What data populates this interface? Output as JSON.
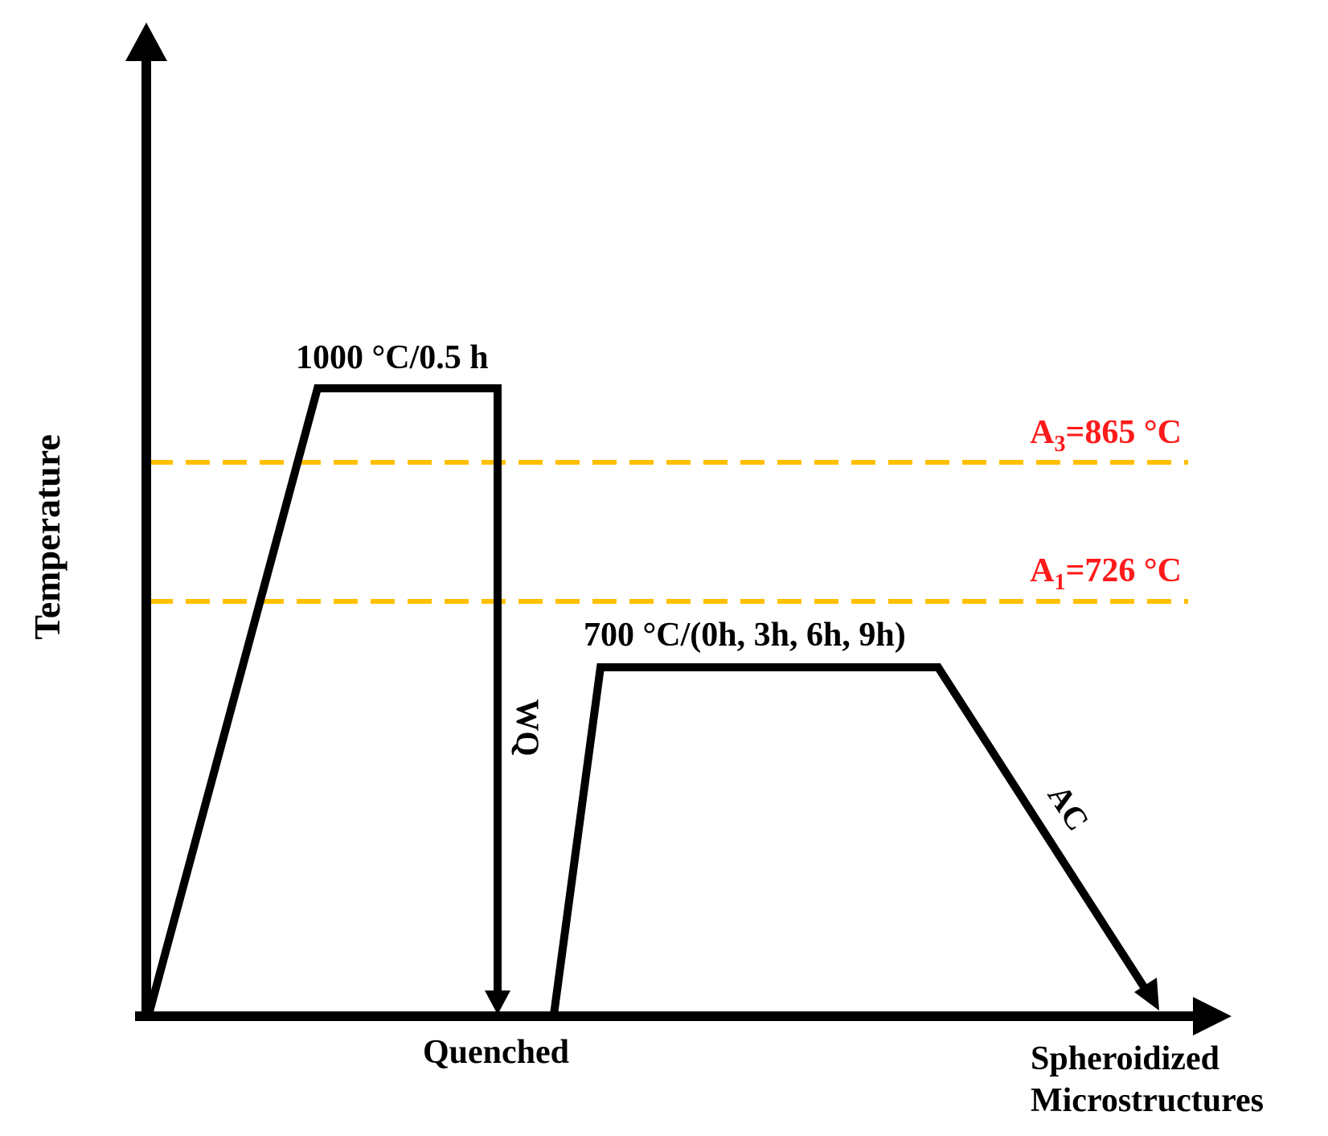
{
  "axes": {
    "y_label": "Temperature"
  },
  "process": {
    "austenitize_label": "1000 °C/0.5 h",
    "quench_label": "WQ",
    "quenched_label": "Quenched",
    "spheroidize_label": "700 °C/(0h, 3h, 6h, 9h)",
    "air_cool_label": "AC",
    "final_label_line1": "Spheroidized",
    "final_label_line2": "Microstructures"
  },
  "critical_lines": [
    {
      "letter": "A",
      "subscript": "3",
      "value": "=865 °C"
    },
    {
      "letter": "A",
      "subscript": "1",
      "value": "=726 °C"
    }
  ],
  "colors": {
    "line": "#000000",
    "critical_line": "#ffc000",
    "critical_text": "#ff1a1a"
  }
}
